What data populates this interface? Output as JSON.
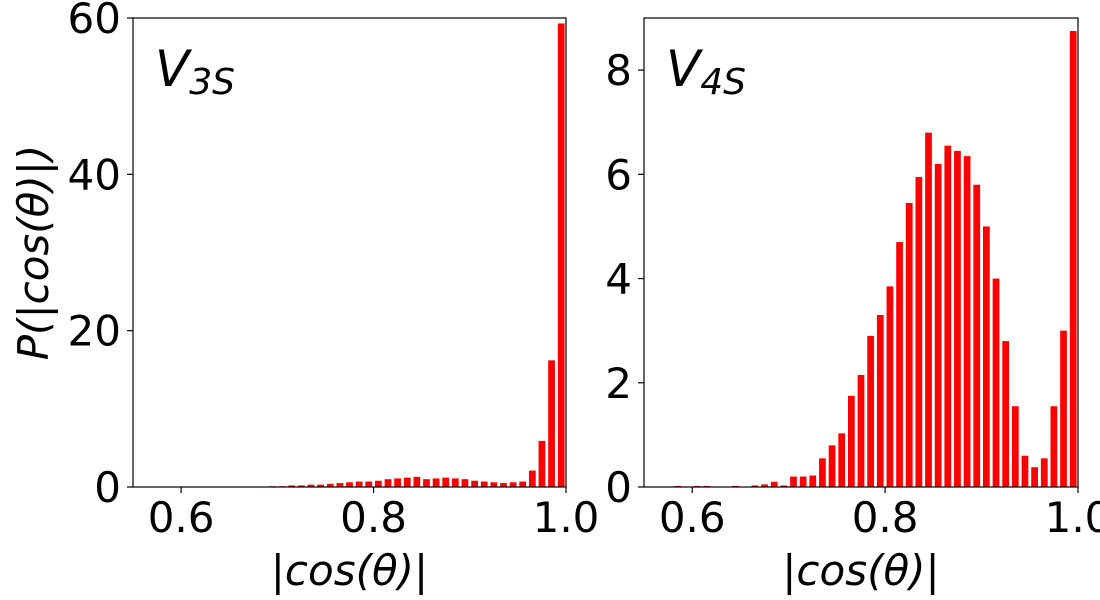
{
  "chart_data": [
    {
      "type": "histogram",
      "label": "V",
      "label_sub": "3S",
      "xlabel": "|cos(θ)|",
      "ylabel": "P(|cos(θ)|)",
      "color": "#ff0000",
      "bins": [
        0.55,
        0.56,
        0.57,
        0.58,
        0.59,
        0.6,
        0.61,
        0.62,
        0.63,
        0.64,
        0.65,
        0.66,
        0.67,
        0.68,
        0.69,
        0.7,
        0.71,
        0.72,
        0.73,
        0.74,
        0.75,
        0.76,
        0.77,
        0.78,
        0.79,
        0.8,
        0.81,
        0.82,
        0.83,
        0.84,
        0.85,
        0.86,
        0.87,
        0.88,
        0.89,
        0.9,
        0.91,
        0.92,
        0.93,
        0.94,
        0.95,
        0.96,
        0.97,
        0.98,
        0.99,
        1
      ],
      "values": [
        0,
        0,
        0,
        0,
        0,
        0,
        0,
        0,
        0,
        0,
        0,
        0,
        0,
        0,
        0.1,
        0.1,
        0.2,
        0.2,
        0.3,
        0.3,
        0.4,
        0.5,
        0.6,
        0.7,
        0.7,
        0.8,
        1.0,
        1.1,
        1.2,
        1.3,
        1.0,
        1.1,
        1.2,
        1.1,
        1.0,
        0.8,
        0.7,
        0.6,
        0.5,
        0.6,
        0.7,
        2.1,
        5.9,
        16.2,
        59.3
      ],
      "xlim": [
        0.55,
        1
      ],
      "xticks": [
        0.6,
        0.8,
        {
          "value": 1,
          "label": "1.0"
        }
      ],
      "ylim": [
        0,
        60
      ],
      "yticks": [
        0,
        20,
        40,
        60
      ]
    },
    {
      "type": "histogram",
      "label": "V",
      "label_sub": "4S",
      "xlabel": "|cos(θ)|",
      "color": "#ff0000",
      "bins": [
        0.55,
        0.56,
        0.57,
        0.58,
        0.59,
        0.6,
        0.61,
        0.62,
        0.63,
        0.64,
        0.65,
        0.66,
        0.67,
        0.68,
        0.69,
        0.7,
        0.71,
        0.72,
        0.73,
        0.74,
        0.75,
        0.76,
        0.77,
        0.78,
        0.79,
        0.8,
        0.81,
        0.82,
        0.83,
        0.84,
        0.85,
        0.86,
        0.87,
        0.88,
        0.89,
        0.9,
        0.91,
        0.92,
        0.93,
        0.94,
        0.95,
        0.96,
        0.97,
        0.98,
        0.99,
        1
      ],
      "values": [
        0,
        0,
        0,
        0.02,
        0,
        0.02,
        0.02,
        0,
        0,
        0.02,
        0,
        0.03,
        0.05,
        0.1,
        0.03,
        0.2,
        0.2,
        0.22,
        0.55,
        0.8,
        1.03,
        1.75,
        2.15,
        2.9,
        3.3,
        3.85,
        4.7,
        5.45,
        5.95,
        6.8,
        6.2,
        6.55,
        6.45,
        6.35,
        5.8,
        5.0,
        4.0,
        2.8,
        1.55,
        0.6,
        0.38,
        0.55,
        1.55,
        3.0,
        8.75
      ],
      "xlim": [
        0.55,
        1
      ],
      "xticks": [
        0.6,
        0.8,
        {
          "value": 1,
          "label": "1.0"
        }
      ],
      "ylim": [
        0,
        9
      ],
      "yticks": [
        0,
        2,
        4,
        6,
        8
      ]
    }
  ]
}
